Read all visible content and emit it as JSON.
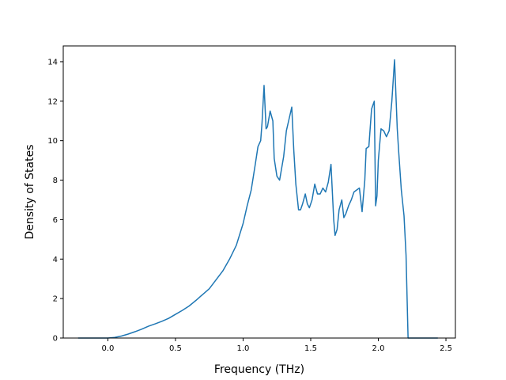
{
  "chart_data": {
    "type": "line",
    "title": "",
    "xlabel": "Frequency (THz)",
    "ylabel": "Density of States",
    "xlim": [
      -0.33,
      2.57
    ],
    "ylim": [
      0,
      14.8
    ],
    "xticks": [
      0.0,
      0.5,
      1.0,
      1.5,
      2.0,
      2.5
    ],
    "xtick_labels": [
      "0.0",
      "0.5",
      "1.0",
      "1.5",
      "2.0",
      "2.5"
    ],
    "yticks": [
      0,
      2,
      4,
      6,
      8,
      10,
      12,
      14
    ],
    "ytick_labels": [
      "0",
      "2",
      "4",
      "6",
      "8",
      "10",
      "12",
      "14"
    ],
    "grid": false,
    "legend": "none",
    "series": [
      {
        "color": "#1f77b4",
        "x": [
          -0.22,
          0.0,
          0.05,
          0.1,
          0.15,
          0.2,
          0.25,
          0.3,
          0.35,
          0.4,
          0.45,
          0.5,
          0.55,
          0.6,
          0.65,
          0.7,
          0.75,
          0.8,
          0.85,
          0.9,
          0.95,
          1.0,
          1.03,
          1.06,
          1.09,
          1.11,
          1.13,
          1.14,
          1.155,
          1.17,
          1.18,
          1.2,
          1.22,
          1.23,
          1.25,
          1.27,
          1.3,
          1.32,
          1.34,
          1.36,
          1.375,
          1.39,
          1.41,
          1.425,
          1.44,
          1.46,
          1.475,
          1.49,
          1.51,
          1.53,
          1.55,
          1.57,
          1.59,
          1.61,
          1.63,
          1.65,
          1.67,
          1.68,
          1.695,
          1.71,
          1.73,
          1.745,
          1.76,
          1.78,
          1.8,
          1.82,
          1.84,
          1.86,
          1.88,
          1.9,
          1.91,
          1.93,
          1.95,
          1.97,
          1.98,
          1.99,
          2.0,
          2.02,
          2.04,
          2.06,
          2.08,
          2.1,
          2.12,
          2.14,
          2.15,
          2.17,
          2.19,
          2.205,
          2.22,
          2.23,
          2.3,
          2.44
        ],
        "y": [
          0.0,
          0.0,
          0.03,
          0.1,
          0.2,
          0.32,
          0.45,
          0.6,
          0.72,
          0.85,
          1.0,
          1.2,
          1.4,
          1.62,
          1.9,
          2.2,
          2.5,
          2.95,
          3.4,
          4.0,
          4.7,
          5.8,
          6.7,
          7.5,
          8.8,
          9.7,
          10.0,
          10.9,
          12.8,
          10.6,
          10.7,
          11.5,
          11.0,
          9.1,
          8.2,
          8.0,
          9.2,
          10.5,
          11.1,
          11.7,
          9.5,
          7.8,
          6.5,
          6.5,
          6.8,
          7.3,
          6.8,
          6.6,
          7.0,
          7.8,
          7.3,
          7.3,
          7.6,
          7.4,
          7.9,
          8.8,
          6.0,
          5.2,
          5.5,
          6.5,
          7.0,
          6.1,
          6.3,
          6.7,
          7.0,
          7.4,
          7.5,
          7.6,
          6.4,
          8.0,
          9.6,
          9.7,
          11.6,
          12.0,
          6.7,
          7.2,
          9.0,
          10.6,
          10.5,
          10.2,
          10.5,
          12.0,
          14.1,
          10.6,
          9.5,
          7.5,
          6.2,
          4.2,
          0.0,
          0.0,
          0.0,
          0.0
        ]
      }
    ]
  }
}
